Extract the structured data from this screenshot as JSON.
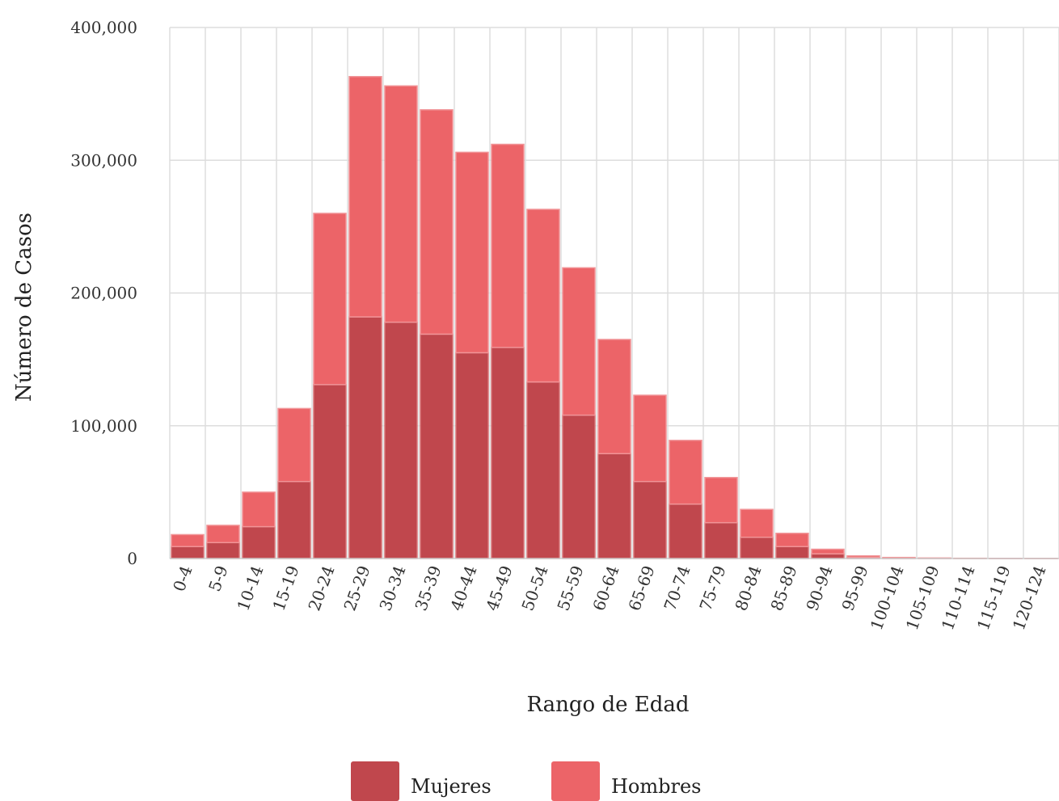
{
  "chart_data": {
    "type": "bar",
    "stacked": true,
    "categories": [
      "0-4",
      "5-9",
      "10-14",
      "15-19",
      "20-24",
      "25-29",
      "30-34",
      "35-39",
      "40-44",
      "45-49",
      "50-54",
      "55-59",
      "60-64",
      "65-69",
      "70-74",
      "75-79",
      "80-84",
      "85-89",
      "90-94",
      "95-99",
      "100-104",
      "105-109",
      "110-114",
      "115-119",
      "120-124"
    ],
    "series": [
      {
        "name": "Mujeres",
        "color": "#c0474d",
        "values": [
          9000,
          12000,
          24000,
          58000,
          131000,
          182000,
          178000,
          169000,
          155000,
          159000,
          133000,
          108000,
          79000,
          58000,
          41000,
          27000,
          16000,
          9000,
          3500,
          800,
          300,
          150,
          80,
          40,
          20
        ]
      },
      {
        "name": "Hombres",
        "color": "#ec6468",
        "values": [
          9000,
          13000,
          26000,
          55000,
          129000,
          181000,
          178000,
          169000,
          151000,
          153000,
          130000,
          111000,
          86000,
          65000,
          48000,
          34000,
          21000,
          10000,
          3500,
          1200,
          500,
          250,
          120,
          60,
          30
        ]
      }
    ],
    "xlabel": "Rango de Edad",
    "ylabel": "Número de Casos",
    "ylim": [
      0,
      400000
    ],
    "yticks": [
      "0",
      "100,000",
      "200,000",
      "300,000",
      "400,000"
    ],
    "grid": true,
    "legend_position": "bottom-center"
  }
}
